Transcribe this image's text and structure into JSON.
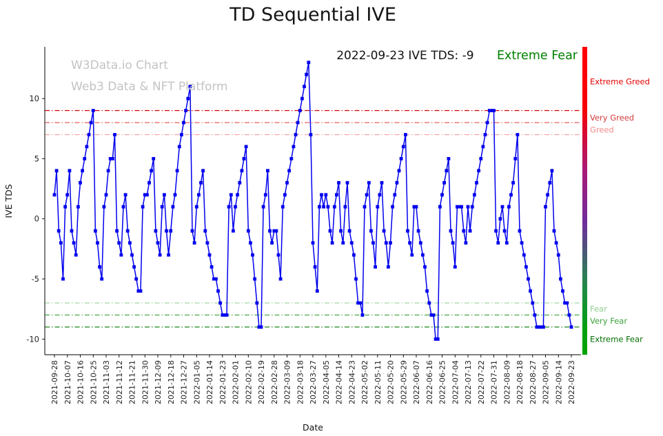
{
  "title": "TD Sequential IVE",
  "watermark": {
    "line1": "W3Data.io Chart",
    "line2": "Web3 Data & NFT Platform"
  },
  "annotation": {
    "reading": "2022-09-23 IVE TDS: -9",
    "status": "Extreme Fear",
    "status_color": "#008000"
  },
  "chart_data": {
    "type": "line",
    "title": "TD Sequential IVE",
    "xlabel": "Date",
    "ylabel": "IVE TDS",
    "series_name": "IVE TDS",
    "line_color": "#0000ee",
    "marker": "square",
    "grid": false,
    "legend": "none",
    "ylim": [
      -11.3,
      14.3
    ],
    "yticks": [
      -10,
      -5,
      0,
      5,
      10
    ],
    "x_tick_step": 6,
    "x_tick_labels": [
      "2021-09-28",
      "2021-10-07",
      "2021-10-16",
      "2021-10-25",
      "2021-11-03",
      "2021-11-12",
      "2021-11-21",
      "2021-11-30",
      "2021-12-09",
      "2021-12-18",
      "2021-12-27",
      "2022-01-05",
      "2022-01-14",
      "2022-01-23",
      "2022-02-01",
      "2022-02-10",
      "2022-02-19",
      "2022-02-28",
      "2022-03-09",
      "2022-03-18",
      "2022-03-27",
      "2022-04-05",
      "2022-04-14",
      "2022-04-23",
      "2022-05-02",
      "2022-05-11",
      "2022-05-20",
      "2022-05-29",
      "2022-06-07",
      "2022-06-16",
      "2022-06-25",
      "2022-07-04",
      "2022-07-13",
      "2022-07-22",
      "2022-07-31",
      "2022-08-09",
      "2022-08-18",
      "2022-08-27",
      "2022-09-05",
      "2022-09-14",
      "2022-09-23"
    ],
    "values": [
      2,
      4,
      -1,
      -2,
      -5,
      1,
      2,
      4,
      -1,
      -2,
      -3,
      1,
      3,
      4,
      5,
      6,
      7,
      8,
      9,
      -1,
      -2,
      -4,
      -5,
      1,
      2,
      4,
      5,
      5,
      7,
      -1,
      -2,
      -3,
      1,
      2,
      -1,
      -2,
      -3,
      -4,
      -5,
      -6,
      -6,
      1,
      2,
      2,
      3,
      4,
      5,
      -1,
      -2,
      -3,
      1,
      2,
      -1,
      -3,
      -1,
      1,
      2,
      4,
      6,
      7,
      8,
      9,
      10,
      11,
      -1,
      -2,
      1,
      2,
      3,
      4,
      -1,
      -2,
      -3,
      -4,
      -5,
      -5,
      -6,
      -7,
      -8,
      -8,
      -8,
      1,
      2,
      -1,
      1,
      2,
      3,
      4,
      5,
      6,
      -1,
      -2,
      -3,
      -5,
      -7,
      -9,
      -9,
      1,
      2,
      4,
      -1,
      -2,
      -1,
      -1,
      -3,
      -5,
      1,
      2,
      3,
      4,
      5,
      6,
      7,
      8,
      9,
      10,
      11,
      12,
      13,
      7,
      -2,
      -4,
      -6,
      1,
      2,
      1,
      2,
      1,
      -1,
      -2,
      1,
      2,
      3,
      -1,
      -2,
      1,
      3,
      -1,
      -2,
      -3,
      -5,
      -7,
      -7,
      -8,
      1,
      2,
      3,
      -1,
      -2,
      -4,
      1,
      2,
      3,
      -1,
      -2,
      -4,
      -2,
      1,
      2,
      3,
      4,
      5,
      6,
      7,
      -1,
      -2,
      -3,
      1,
      1,
      -1,
      -2,
      -3,
      -4,
      -6,
      -7,
      -8,
      -8,
      -10,
      -10,
      1,
      2,
      3,
      4,
      5,
      -1,
      -2,
      -4,
      1,
      1,
      1,
      -1,
      -2,
      1,
      -1,
      1,
      2,
      3,
      4,
      5,
      6,
      7,
      8,
      9,
      9,
      9,
      -1,
      -2,
      0,
      1,
      -1,
      -2,
      1,
      2,
      3,
      5,
      7,
      -1,
      -2,
      -3,
      -4,
      -5,
      -6,
      -7,
      -8,
      -9,
      -9,
      -9,
      -9,
      1,
      2,
      3,
      4,
      -1,
      -2,
      -3,
      -5,
      -6,
      -7,
      -7,
      -8,
      -9
    ],
    "threshold_lines": [
      {
        "value": 9,
        "color": "#d40000"
      },
      {
        "value": 8,
        "color": "#ea5c5c"
      },
      {
        "value": 7,
        "color": "#f4a3a3"
      },
      {
        "value": -7,
        "color": "#a6d6a6"
      },
      {
        "value": -8,
        "color": "#4aa84a"
      },
      {
        "value": -9,
        "color": "#007700"
      }
    ],
    "zone_labels": [
      {
        "text": "Extreme Greed",
        "color": "#e00000",
        "y": 11.4
      },
      {
        "text": "Very Greed",
        "color": "#d23b3b",
        "y": 8.4
      },
      {
        "text": "Greed",
        "color": "#f08c8c",
        "y": 7.4
      },
      {
        "text": "Fear",
        "color": "#8fcc8f",
        "y": -7.5
      },
      {
        "text": "Very Fear",
        "color": "#3da23d",
        "y": -8.5
      },
      {
        "text": "Extreme Fear",
        "color": "#006e00",
        "y": -10.0
      }
    ],
    "colorbar_stops": [
      {
        "offset": "0%",
        "color": "#ff0000"
      },
      {
        "offset": "20%",
        "color": "#f60104"
      },
      {
        "offset": "40%",
        "color": "#aa1a76"
      },
      {
        "offset": "57%",
        "color": "#6e2d9c"
      },
      {
        "offset": "78%",
        "color": "#1f8b46"
      },
      {
        "offset": "92%",
        "color": "#00a00d"
      },
      {
        "offset": "100%",
        "color": "#00a300"
      }
    ]
  }
}
